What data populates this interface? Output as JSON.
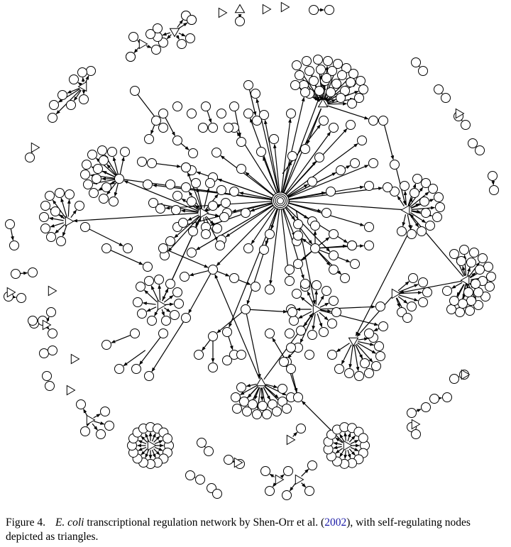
{
  "caption": {
    "figure_number": "Figure 4.",
    "species": "E. coli",
    "text_before_year": " transcriptional regulation network by Shen-Orr et al. (",
    "year": "2002",
    "text_after_year": "), with self-regulating nodes depicted as triangles."
  },
  "legend": {
    "node_symbol": "circle",
    "self_regulating_symbol": "triangle"
  },
  "colors": {
    "background": "#ffffff",
    "stroke": "#000000",
    "citation_link": "#1a1aa6"
  }
}
